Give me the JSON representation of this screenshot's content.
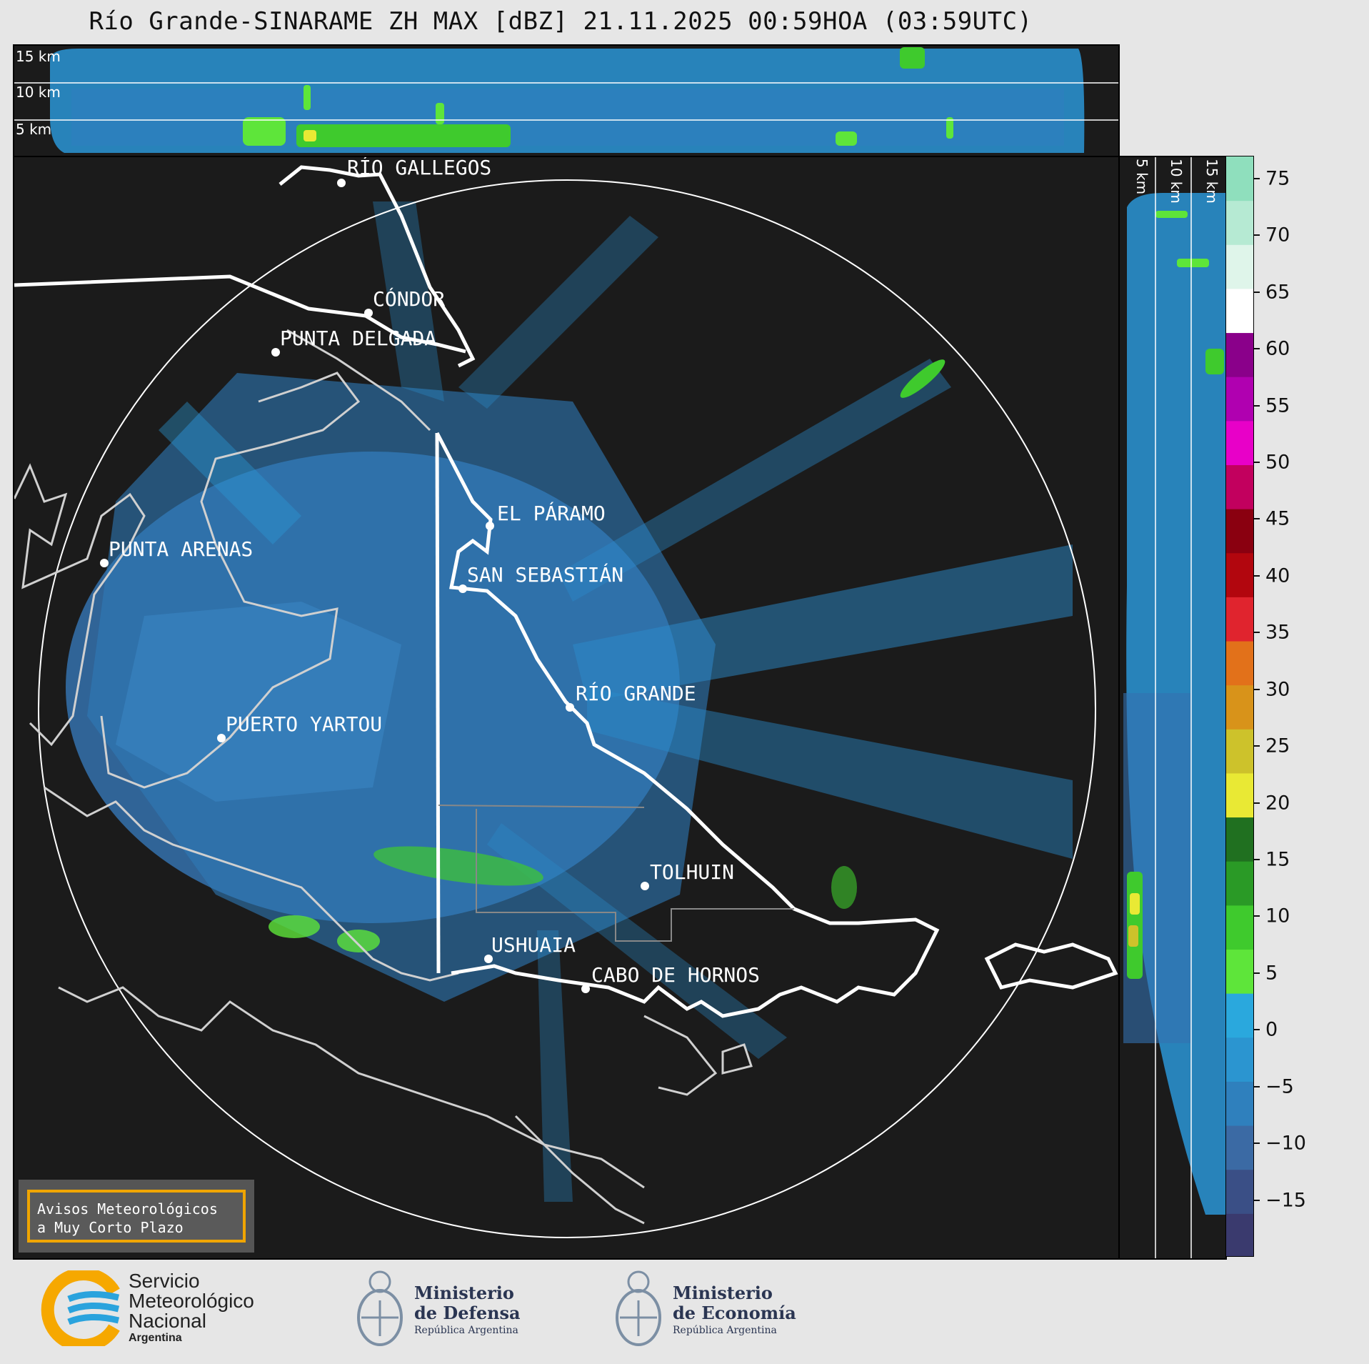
{
  "title": "Río Grande-SINARAME ZH MAX [dBZ] 21.11.2025 00:59HOA (03:59UTC)",
  "top_panel": {
    "height_labels": [
      "15 km",
      "10 km",
      "5 km"
    ]
  },
  "side_panel": {
    "height_labels": [
      "5 km",
      "10 km",
      "15 km"
    ]
  },
  "colorbar": {
    "unit": "dBZ",
    "ticks": [
      "75",
      "70",
      "65",
      "60",
      "55",
      "50",
      "45",
      "40",
      "35",
      "30",
      "25",
      "20",
      "15",
      "10",
      "5",
      "0",
      "−5",
      "−10",
      "−15"
    ],
    "tick_values": [
      75,
      70,
      65,
      60,
      55,
      50,
      45,
      40,
      35,
      30,
      25,
      20,
      15,
      10,
      5,
      0,
      -5,
      -10,
      -15
    ],
    "range": [
      -20,
      77
    ],
    "colors": [
      "#3a3a6e",
      "#3a4f86",
      "#3b6aa4",
      "#2f80bd",
      "#2b95d0",
      "#2aa8dd",
      "#5ee53a",
      "#3fca2d",
      "#2a9a26",
      "#207020",
      "#e9e934",
      "#cdc22b",
      "#d8931a",
      "#e2711a",
      "#e0242e",
      "#b2060e",
      "#8a0010",
      "#c2005e",
      "#e800c8",
      "#b000b0",
      "#8a008a",
      "#ffffff",
      "#dff5ea",
      "#b6ead3",
      "#8fdfbd"
    ]
  },
  "places": [
    {
      "name": "RÍO GALLEGOS"
    },
    {
      "name": "CÓNDOR"
    },
    {
      "name": "PUNTA DELGADA"
    },
    {
      "name": "EL PÁRAMO"
    },
    {
      "name": "PUNTA ARENAS"
    },
    {
      "name": "SAN SEBASTIÁN"
    },
    {
      "name": "RÍO GRANDE"
    },
    {
      "name": "PUERTO YARTOU"
    },
    {
      "name": "TOLHUIN"
    },
    {
      "name": "USHUAIA"
    },
    {
      "name": "CABO DE HORNOS"
    }
  ],
  "notice": {
    "line1": "Avisos Meteorológicos",
    "line2": "a Muy Corto Plazo"
  },
  "logos": {
    "smn": {
      "line1": "Servicio",
      "line2": "Meteorológico",
      "line3": "Nacional",
      "line4": "Argentina"
    },
    "defensa": {
      "line1": "Ministerio",
      "line2": "de Defensa",
      "line3": "República Argentina"
    },
    "economia": {
      "line1": "Ministerio",
      "line2": "de Economía",
      "line3": "República Argentina"
    }
  }
}
